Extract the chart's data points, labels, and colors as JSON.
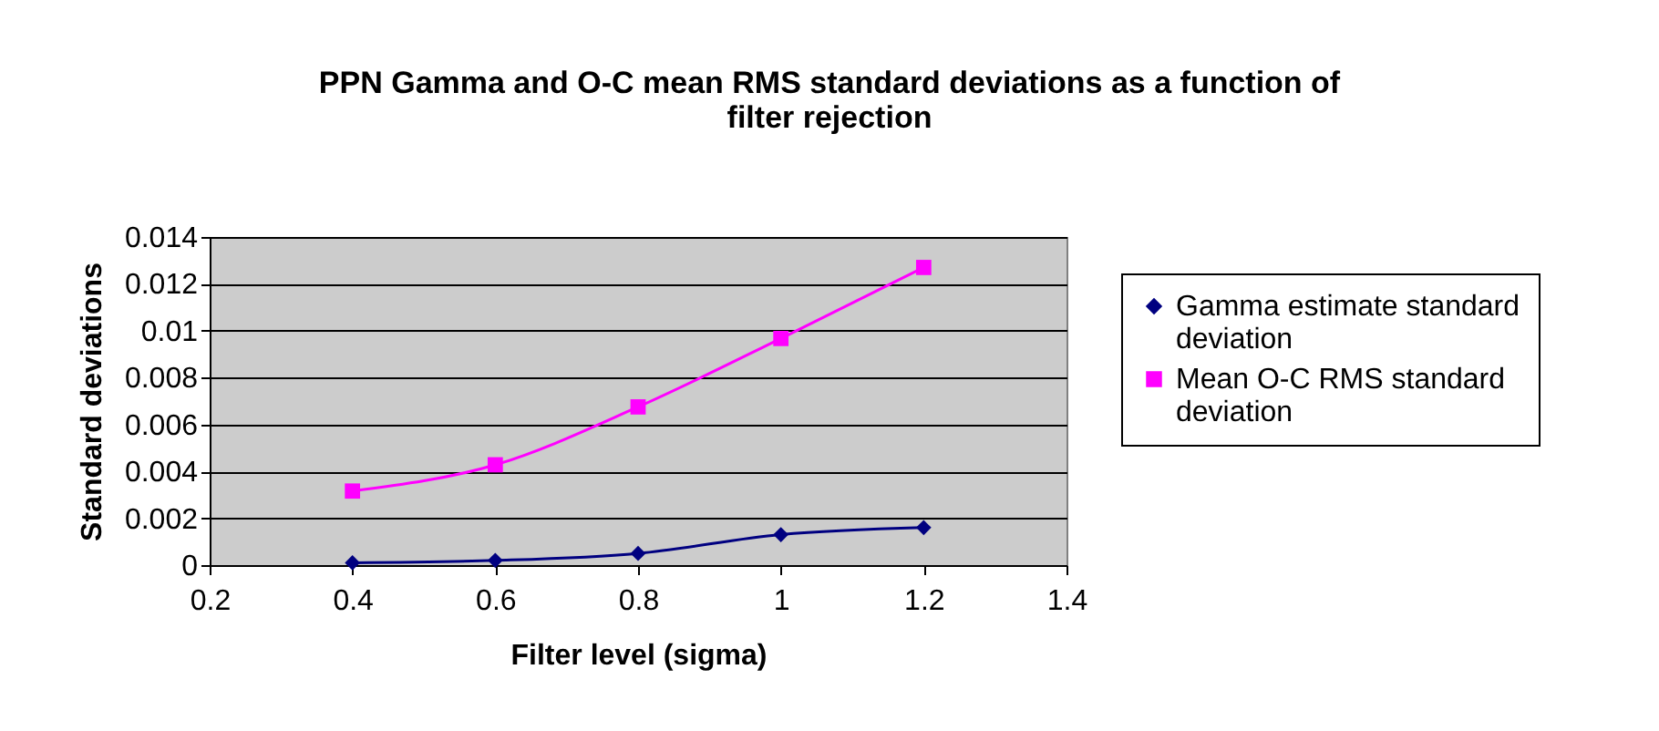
{
  "chart_data": {
    "type": "line",
    "title": "PPN Gamma and O-C mean RMS standard deviations as a function of filter rejection",
    "xlabel": "Filter level (sigma)",
    "ylabel": "Standard deviations",
    "x": [
      0.4,
      0.6,
      0.8,
      1.0,
      1.2
    ],
    "series": [
      {
        "name": "Gamma estimate standard deviation",
        "color": "#000080",
        "marker": "diamond",
        "values": [
          0.0001,
          0.0002,
          0.0005,
          0.0013,
          0.0016
        ]
      },
      {
        "name": "Mean O-C RMS standard deviation",
        "color": "#ff00ff",
        "marker": "square",
        "values": [
          0.00316,
          0.00428,
          0.00675,
          0.00967,
          0.0127
        ]
      }
    ],
    "xlim": [
      0.2,
      1.4
    ],
    "xticks": [
      0.2,
      0.4,
      0.6,
      0.8,
      1,
      1.2,
      1.4
    ],
    "ylim": [
      0,
      0.014
    ],
    "yticks": [
      0,
      0.002,
      0.004,
      0.006,
      0.008,
      0.01,
      0.012,
      0.014
    ],
    "grid": "y",
    "legend": "right",
    "line_style": "solid"
  }
}
